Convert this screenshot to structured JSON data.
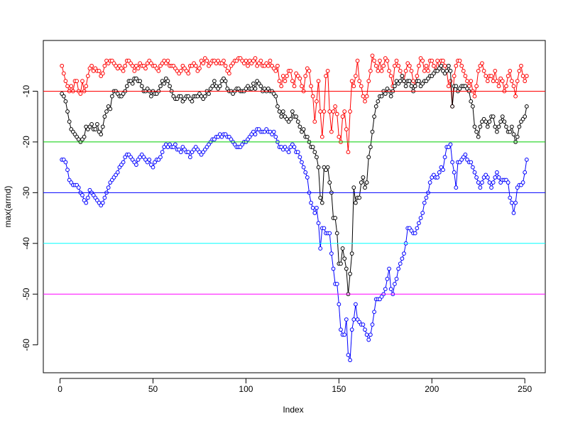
{
  "chart_data": {
    "type": "line",
    "x_label": "Index",
    "y_label": "max(arrnd)",
    "xlim": [
      -9,
      261
    ],
    "ylim": [
      -65.5,
      0
    ],
    "xticks": [
      0,
      50,
      100,
      150,
      200,
      250
    ],
    "yticks": [
      -60,
      -50,
      -40,
      -30,
      -20,
      -10
    ],
    "hlines": [
      {
        "value": -10,
        "color": "#ff0000"
      },
      {
        "value": -20,
        "color": "#00cd00"
      },
      {
        "value": -30,
        "color": "#0000ff"
      },
      {
        "value": -40,
        "color": "#00ffff"
      },
      {
        "value": -50,
        "color": "#ff00ff"
      }
    ],
    "x": [
      1,
      2,
      3,
      4,
      5,
      6,
      7,
      8,
      9,
      10,
      11,
      12,
      13,
      14,
      15,
      16,
      17,
      18,
      19,
      20,
      21,
      22,
      23,
      24,
      25,
      26,
      27,
      28,
      29,
      30,
      31,
      32,
      33,
      34,
      35,
      36,
      37,
      38,
      39,
      40,
      41,
      42,
      43,
      44,
      45,
      46,
      47,
      48,
      49,
      50,
      51,
      52,
      53,
      54,
      55,
      56,
      57,
      58,
      59,
      60,
      61,
      62,
      63,
      64,
      65,
      66,
      67,
      68,
      69,
      70,
      71,
      72,
      73,
      74,
      75,
      76,
      77,
      78,
      79,
      80,
      81,
      82,
      83,
      84,
      85,
      86,
      87,
      88,
      89,
      90,
      91,
      92,
      93,
      94,
      95,
      96,
      97,
      98,
      99,
      100,
      101,
      102,
      103,
      104,
      105,
      106,
      107,
      108,
      109,
      110,
      111,
      112,
      113,
      114,
      115,
      116,
      117,
      118,
      119,
      120,
      121,
      122,
      123,
      124,
      125,
      126,
      127,
      128,
      129,
      130,
      131,
      132,
      133,
      134,
      135,
      136,
      137,
      138,
      139,
      140,
      141,
      142,
      143,
      144,
      145,
      146,
      147,
      148,
      149,
      150,
      151,
      152,
      153,
      154,
      155,
      156,
      157,
      158,
      159,
      160,
      161,
      162,
      163,
      164,
      165,
      166,
      167,
      168,
      169,
      170,
      171,
      172,
      173,
      174,
      175,
      176,
      177,
      178,
      179,
      180,
      181,
      182,
      183,
      184,
      185,
      186,
      187,
      188,
      189,
      190,
      191,
      192,
      193,
      194,
      195,
      196,
      197,
      198,
      199,
      200,
      201,
      202,
      203,
      204,
      205,
      206,
      207,
      208,
      209,
      210,
      211,
      212,
      213,
      214,
      215,
      216,
      217,
      218,
      219,
      220,
      221,
      222,
      223,
      224,
      225,
      226,
      227,
      228,
      229,
      230,
      231,
      232,
      233,
      234,
      235,
      236,
      237,
      238,
      239,
      240,
      241,
      242,
      243,
      244,
      245,
      246,
      247,
      248,
      249,
      250,
      251
    ],
    "series": [
      {
        "color": "#ff0000",
        "values": [
          -5,
          -6.5,
          -8,
          -9,
          -10,
          -9,
          -10,
          -8,
          -8,
          -10,
          -10.5,
          -8,
          -10,
          -9,
          -7,
          -5.5,
          -5,
          -6,
          -5.5,
          -6,
          -6,
          -7,
          -6.5,
          -5,
          -4,
          -4.5,
          -4,
          -4,
          -4.5,
          -5,
          -5.5,
          -5,
          -5.5,
          -6,
          -5,
          -4,
          -4,
          -4.5,
          -5,
          -6,
          -5,
          -5.5,
          -4.5,
          -5,
          -5,
          -5.5,
          -4.5,
          -4,
          -4.5,
          -5,
          -5,
          -5.5,
          -6,
          -5,
          -4.5,
          -4,
          -4.5,
          -4,
          -5,
          -5,
          -5,
          -5.5,
          -6,
          -6.5,
          -6,
          -5,
          -5.5,
          -6,
          -6.5,
          -5,
          -5,
          -4.5,
          -5,
          -6,
          -5.5,
          -4,
          -4.5,
          -3.5,
          -4,
          -5,
          -4.5,
          -4,
          -4,
          -4.5,
          -4,
          -4.5,
          -4.5,
          -4,
          -5,
          -6,
          -6.5,
          -5,
          -4.5,
          -4,
          -4,
          -3.5,
          -3.5,
          -4,
          -4.5,
          -4,
          -5,
          -4,
          -4.5,
          -4,
          -3.5,
          -5,
          -4.5,
          -4,
          -5,
          -5,
          -4.5,
          -5,
          -4,
          -5,
          -5.5,
          -6,
          -5,
          -8,
          -9,
          -7,
          -8,
          -7,
          -6,
          -6,
          -8,
          -9,
          -6.5,
          -7,
          -7.5,
          -9,
          -10,
          -7,
          -5.5,
          -6,
          -9,
          -11,
          -16,
          -12,
          -8,
          -14,
          -19,
          -14,
          -7,
          -6,
          -14,
          -18,
          -14,
          -13,
          -14.5,
          -19,
          -20,
          -15,
          -14,
          -17.5,
          -22,
          -14,
          -8,
          -9,
          -7,
          -4,
          -8,
          -9,
          -11,
          -12,
          -11,
          -8,
          -6,
          -3,
          -4,
          -5,
          -6,
          -4,
          -6,
          -5,
          -3.5,
          -4,
          -6,
          -7,
          -9,
          -5,
          -4,
          -5,
          -6,
          -7,
          -8,
          -6,
          -4.5,
          -5,
          -6,
          -8,
          -9,
          -7,
          -5,
          -3.5,
          -4,
          -6,
          -5,
          -6,
          -4,
          -4,
          -5,
          -6,
          -4,
          -5.5,
          -4,
          -4,
          -5,
          -6,
          -9,
          -8,
          -13,
          -7,
          -5,
          -4,
          -4,
          -5,
          -6,
          -7,
          -8,
          -9,
          -8,
          -10,
          -11,
          -9,
          -6,
          -5,
          -4.5,
          -6,
          -7,
          -8,
          -7,
          -7,
          -8,
          -6,
          -8,
          -9,
          -7.5,
          -8,
          -10,
          -9,
          -7,
          -6,
          -8,
          -9,
          -11,
          -8,
          -6,
          -5,
          -7,
          -8,
          -7
        ]
      },
      {
        "color": "#000000",
        "values": [
          -10.5,
          -11,
          -12,
          -14,
          -16,
          -17.5,
          -18,
          -18.5,
          -19,
          -19.5,
          -20,
          -19.5,
          -19,
          -17,
          -17.5,
          -17,
          -16.5,
          -17.5,
          -17.5,
          -16.5,
          -18,
          -18.5,
          -17,
          -15,
          -14,
          -13,
          -13.5,
          -11,
          -10,
          -10,
          -10.5,
          -11,
          -11,
          -10.5,
          -10,
          -9,
          -8,
          -8,
          -8.5,
          -7.5,
          -7.5,
          -8,
          -8,
          -9,
          -10,
          -10,
          -9.5,
          -10,
          -11,
          -10,
          -10.5,
          -10.5,
          -10,
          -9,
          -8,
          -8.5,
          -7.5,
          -8,
          -9,
          -10,
          -11,
          -11.5,
          -11.5,
          -11,
          -11,
          -12,
          -11.5,
          -11,
          -11,
          -11.5,
          -12,
          -11,
          -11,
          -11,
          -10.5,
          -11,
          -11.5,
          -11,
          -10,
          -10.5,
          -9.5,
          -9,
          -8,
          -9,
          -9.5,
          -9,
          -8,
          -7.5,
          -8,
          -9.5,
          -10,
          -10,
          -10.5,
          -10,
          -9.5,
          -9.5,
          -10,
          -10,
          -10,
          -9.5,
          -9,
          -9.5,
          -9.5,
          -8.5,
          -9.5,
          -8,
          -8.5,
          -9,
          -10,
          -9.5,
          -10,
          -9.5,
          -10,
          -10,
          -10.5,
          -11,
          -13,
          -14,
          -15,
          -14,
          -15,
          -15.5,
          -16,
          -15.5,
          -14,
          -15,
          -15,
          -16,
          -17,
          -18,
          -17.5,
          -19,
          -19,
          -20,
          -21,
          -21,
          -22,
          -23,
          -25,
          -31,
          -32,
          -25,
          -25.5,
          -25,
          -28,
          -30,
          -35,
          -35,
          -38,
          -44,
          -44,
          -41,
          -43,
          -45,
          -50,
          -46,
          -42,
          -29,
          -32,
          -31,
          -31,
          -28,
          -27,
          -29,
          -28,
          -23,
          -21,
          -18,
          -15,
          -13,
          -12,
          -11,
          -11,
          -10,
          -10.5,
          -9.5,
          -10,
          -11,
          -10,
          -9,
          -8,
          -8.5,
          -8,
          -7,
          -8,
          -9,
          -8,
          -8,
          -9,
          -10,
          -9,
          -8,
          -8,
          -9,
          -8.5,
          -8,
          -8,
          -7.5,
          -7,
          -7,
          -6.5,
          -6,
          -6,
          -5.5,
          -5,
          -6,
          -6.5,
          -6,
          -5,
          -6,
          -13,
          -9,
          -9,
          -10,
          -9.5,
          -9,
          -9,
          -9,
          -9.5,
          -10,
          -12,
          -13,
          -17,
          -18,
          -19,
          -17,
          -16,
          -15.5,
          -16,
          -17,
          -16,
          -15,
          -15,
          -17,
          -18,
          -17,
          -16,
          -15,
          -16,
          -17,
          -18,
          -18,
          -17,
          -18.5,
          -20,
          -19,
          -17,
          -16,
          -15.5,
          -15,
          -13
        ]
      },
      {
        "color": "#0000ff",
        "values": [
          -23.5,
          -23.5,
          -24,
          -25.5,
          -27.5,
          -28,
          -28.5,
          -28.5,
          -28.5,
          -29,
          -30,
          -30.5,
          -31.5,
          -32,
          -31,
          -29.5,
          -30,
          -30.5,
          -31,
          -31.5,
          -32,
          -32.5,
          -32,
          -31,
          -30,
          -29,
          -28,
          -27.5,
          -27,
          -26.5,
          -26,
          -25,
          -24.5,
          -24,
          -23,
          -22.5,
          -22.5,
          -23,
          -23.5,
          -24,
          -24.5,
          -23.5,
          -23,
          -22.5,
          -23,
          -23.5,
          -24,
          -23.5,
          -24.5,
          -25,
          -24,
          -23.5,
          -23.5,
          -23,
          -22,
          -21,
          -20.5,
          -21,
          -20.5,
          -21,
          -21,
          -20.5,
          -21.5,
          -21.5,
          -22,
          -21,
          -21.5,
          -22,
          -22,
          -23,
          -22,
          -21.5,
          -21,
          -21.5,
          -22,
          -22.5,
          -22,
          -21.5,
          -21,
          -20.5,
          -20,
          -19.5,
          -19.5,
          -19,
          -19,
          -18.5,
          -19,
          -18.5,
          -18.5,
          -19,
          -19,
          -19.5,
          -20,
          -20.5,
          -21,
          -21,
          -21,
          -20.5,
          -20,
          -20,
          -19.5,
          -19,
          -18.5,
          -18,
          -18.5,
          -17.5,
          -17.5,
          -18,
          -18,
          -18,
          -17.5,
          -18,
          -18,
          -18.5,
          -18,
          -19,
          -20,
          -21,
          -21,
          -21.5,
          -21,
          -21.5,
          -22,
          -21,
          -20.5,
          -21,
          -22,
          -22,
          -23,
          -24,
          -25,
          -26,
          -27,
          -30,
          -32,
          -33,
          -34,
          -33,
          -36,
          -41,
          -37,
          -37,
          -38,
          -38,
          -38,
          -42,
          -45,
          -48,
          -48,
          -52,
          -57,
          -58,
          -58,
          -55,
          -62,
          -63,
          -57,
          -55,
          -52,
          -55,
          -55.5,
          -56,
          -56,
          -57,
          -58,
          -59,
          -58,
          -56,
          -53.5,
          -51,
          -51,
          -51,
          -50.5,
          -50,
          -49,
          -47,
          -45,
          -49,
          -50,
          -48,
          -47,
          -45,
          -44,
          -43,
          -42,
          -40,
          -37,
          -37,
          -37.5,
          -38,
          -38,
          -37,
          -36,
          -35,
          -34,
          -32,
          -31,
          -30,
          -28,
          -27,
          -26.5,
          -27,
          -27,
          -26,
          -25,
          -25.5,
          -23,
          -21,
          -21,
          -20.5,
          -24,
          -26,
          -29,
          -24,
          -24,
          -23.5,
          -23,
          -22.5,
          -23.5,
          -24,
          -24,
          -25,
          -26,
          -27,
          -28,
          -29,
          -28,
          -27,
          -26.5,
          -27,
          -28,
          -29,
          -28,
          -27,
          -26,
          -27,
          -28,
          -27.5,
          -27.5,
          -27.5,
          -28,
          -31,
          -32,
          -34,
          -32,
          -29,
          -28.5,
          -28.5,
          -28,
          -26,
          -23.5
        ]
      }
    ]
  }
}
